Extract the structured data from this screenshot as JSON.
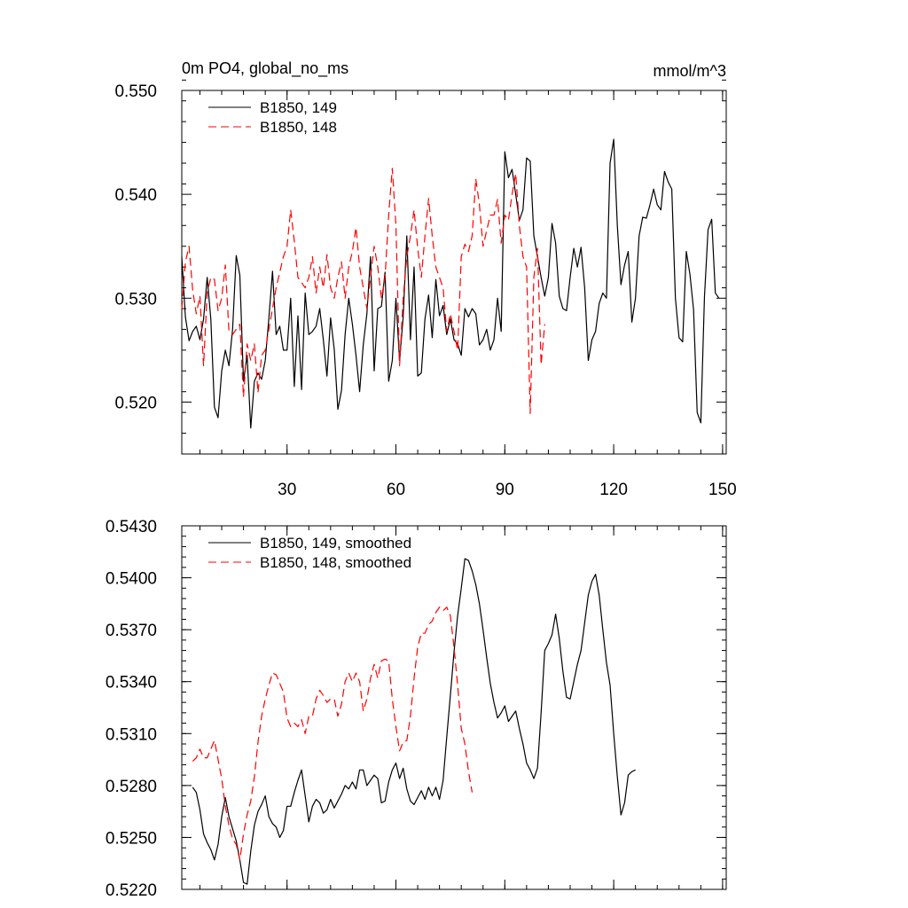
{
  "chart_data": [
    {
      "type": "line",
      "title_left": "0m PO4, global_no_ms",
      "title_right": "mmol/m^3",
      "xlim": [
        1,
        151
      ],
      "ylim": [
        0.515,
        0.55
      ],
      "xticks": [
        30,
        60,
        90,
        120,
        150
      ],
      "xtick_labels": [
        "30",
        "60",
        "90",
        "120",
        "150"
      ],
      "yticks": [
        0.52,
        0.53,
        0.54,
        0.55
      ],
      "ytick_labels": [
        "0.520",
        "0.530",
        "0.540",
        "0.550"
      ],
      "legend_position": "top-left",
      "series": [
        {
          "name": "B1850, 149",
          "color": "#000000",
          "dash": "solid",
          "x_start": 1,
          "values": [
            0.534,
            0.5282,
            0.5259,
            0.5268,
            0.5273,
            0.526,
            0.528,
            0.532,
            0.528,
            0.5195,
            0.5185,
            0.523,
            0.525,
            0.5235,
            0.527,
            0.5341,
            0.5322,
            0.522,
            0.5245,
            0.5175,
            0.522,
            0.5228,
            0.5222,
            0.524,
            0.5281,
            0.5326,
            0.5265,
            0.5273,
            0.525,
            0.525,
            0.53,
            0.5215,
            0.5283,
            0.5212,
            0.5305,
            0.5265,
            0.5268,
            0.5273,
            0.529,
            0.526,
            0.5225,
            0.5281,
            0.5251,
            0.5193,
            0.5211,
            0.5265,
            0.53,
            0.5275,
            0.5245,
            0.521,
            0.5255,
            0.5285,
            0.534,
            0.523,
            0.529,
            0.5292,
            0.5325,
            0.522,
            0.524,
            0.53,
            0.524,
            0.5282,
            0.536,
            0.526,
            0.533,
            0.5225,
            0.5228,
            0.528,
            0.5303,
            0.5262,
            0.5318,
            0.5283,
            0.5293,
            0.5265,
            0.528,
            0.526,
            0.5256,
            0.5245,
            0.529,
            0.5282,
            0.529,
            0.5285,
            0.5255,
            0.526,
            0.527,
            0.525,
            0.526,
            0.53,
            0.5268,
            0.5441,
            0.5416,
            0.5424,
            0.54,
            0.5375,
            0.5385,
            0.5435,
            0.5432,
            0.536,
            0.534,
            0.532,
            0.5302,
            0.532,
            0.5372,
            0.5353,
            0.5302,
            0.529,
            0.5288,
            0.532,
            0.5348,
            0.533,
            0.5349,
            0.531,
            0.524,
            0.526,
            0.5268,
            0.5295,
            0.5305,
            0.53,
            0.543,
            0.5453,
            0.537,
            0.5313,
            0.5332,
            0.5345,
            0.5277,
            0.53,
            0.536,
            0.5378,
            0.5377,
            0.539,
            0.5405,
            0.539,
            0.5385,
            0.5422,
            0.5412,
            0.5405,
            0.53,
            0.5262,
            0.5258,
            0.5345,
            0.5323,
            0.5289,
            0.519,
            0.518,
            0.5301,
            0.5366,
            0.5376,
            0.5305,
            0.53
          ]
        },
        {
          "name": "B1850, 148",
          "color": "#ff0000",
          "dash": "dashed",
          "x_start": 1,
          "values": [
            0.529,
            0.5335,
            0.535,
            0.5308,
            0.5285,
            0.5302,
            0.5235,
            0.5305,
            0.532,
            0.5318,
            0.5288,
            0.53,
            0.5332,
            0.5268,
            0.5265,
            0.527,
            0.5275,
            0.5205,
            0.5256,
            0.524,
            0.5256,
            0.5209,
            0.5245,
            0.525,
            0.527,
            0.529,
            0.531,
            0.5325,
            0.534,
            0.535,
            0.5385,
            0.5355,
            0.532,
            0.5315,
            0.531,
            0.532,
            0.534,
            0.5305,
            0.533,
            0.531,
            0.5342,
            0.531,
            0.53,
            0.532,
            0.5335,
            0.53,
            0.533,
            0.5345,
            0.5368,
            0.533,
            0.531,
            0.529,
            0.532,
            0.535,
            0.533,
            0.53,
            0.532,
            0.538,
            0.5425,
            0.537,
            0.5235,
            0.53,
            0.534,
            0.536,
            0.5385,
            0.5348,
            0.532,
            0.536,
            0.5396,
            0.536,
            0.533,
            0.532,
            0.531,
            0.5268,
            0.5285,
            0.5268,
            0.525,
            0.534,
            0.5352,
            0.5345,
            0.536,
            0.5415,
            0.539,
            0.535,
            0.5365,
            0.538,
            0.538,
            0.5395,
            0.5353,
            0.538,
            0.5375,
            0.54,
            0.542,
            0.537,
            0.534,
            0.533,
            0.5189,
            0.532,
            0.5348,
            0.5236,
            0.5275
          ]
        }
      ]
    },
    {
      "type": "line",
      "xlim": [
        1,
        151
      ],
      "ylim": [
        0.522,
        0.543
      ],
      "xticks": [
        30,
        60,
        90,
        120,
        150
      ],
      "yticks": [
        0.522,
        0.525,
        0.528,
        0.531,
        0.534,
        0.537,
        0.54,
        0.543
      ],
      "ytick_labels": [
        "0.5220",
        "0.5250",
        "0.5280",
        "0.5310",
        "0.5340",
        "0.5370",
        "0.5400",
        "0.5430"
      ],
      "legend_position": "top-left",
      "series": [
        {
          "name": "B1850, 149, smoothed",
          "color": "#000000",
          "dash": "solid",
          "x_start": 4,
          "values": [
            0.5279,
            0.5276,
            0.5266,
            0.5252,
            0.5247,
            0.5243,
            0.5237,
            0.5246,
            0.5262,
            0.5273,
            0.5262,
            0.5255,
            0.5248,
            0.5237,
            0.5224,
            0.5223,
            0.5242,
            0.5257,
            0.5265,
            0.5269,
            0.5274,
            0.5262,
            0.5258,
            0.5256,
            0.525,
            0.5254,
            0.5268,
            0.5268,
            0.5276,
            0.5283,
            0.5289,
            0.5274,
            0.5259,
            0.5268,
            0.5272,
            0.527,
            0.5264,
            0.5266,
            0.5272,
            0.5267,
            0.5271,
            0.5275,
            0.528,
            0.5278,
            0.5282,
            0.5278,
            0.5289,
            0.5289,
            0.528,
            0.5283,
            0.5286,
            0.5284,
            0.527,
            0.5271,
            0.5282,
            0.5289,
            0.5293,
            0.5284,
            0.529,
            0.5278,
            0.5271,
            0.5269,
            0.5273,
            0.5277,
            0.5272,
            0.5279,
            0.5274,
            0.5279,
            0.5272,
            0.5283,
            0.5308,
            0.5332,
            0.5357,
            0.5378,
            0.5394,
            0.5411,
            0.541,
            0.5404,
            0.5396,
            0.5385,
            0.537,
            0.5354,
            0.5339,
            0.5328,
            0.5319,
            0.5322,
            0.5326,
            0.5317,
            0.532,
            0.5323,
            0.5313,
            0.5304,
            0.5293,
            0.5289,
            0.5284,
            0.529,
            0.5322,
            0.5358,
            0.5362,
            0.5367,
            0.5379,
            0.5365,
            0.5346,
            0.5331,
            0.533,
            0.534,
            0.535,
            0.5358,
            0.5374,
            0.539,
            0.5398,
            0.5402,
            0.539,
            0.537,
            0.5351,
            0.5338,
            0.531,
            0.5285,
            0.5263,
            0.527,
            0.5286,
            0.5288,
            0.5289
          ]
        },
        {
          "name": "B1850, 148, smoothed",
          "color": "#ff0000",
          "dash": "dashed",
          "x_start": 4,
          "values": [
            0.5294,
            0.5296,
            0.5301,
            0.5296,
            0.5296,
            0.5301,
            0.5306,
            0.5295,
            0.5284,
            0.5268,
            0.5257,
            0.5249,
            0.5246,
            0.5237,
            0.5252,
            0.5263,
            0.5271,
            0.5285,
            0.5305,
            0.532,
            0.533,
            0.5338,
            0.5345,
            0.5344,
            0.5339,
            0.5334,
            0.5319,
            0.5314,
            0.5316,
            0.5314,
            0.5318,
            0.531,
            0.532,
            0.532,
            0.533,
            0.5335,
            0.5332,
            0.5328,
            0.533,
            0.533,
            0.532,
            0.5327,
            0.534,
            0.5345,
            0.534,
            0.5345,
            0.534,
            0.5323,
            0.533,
            0.5342,
            0.535,
            0.5342,
            0.5352,
            0.5353,
            0.5352,
            0.533,
            0.5314,
            0.53,
            0.5305,
            0.5306,
            0.532,
            0.5342,
            0.536,
            0.5368,
            0.5368,
            0.5373,
            0.5375,
            0.538,
            0.5383,
            0.5381,
            0.5383,
            0.5378,
            0.536,
            0.5338,
            0.5313,
            0.5304,
            0.5288,
            0.5276
          ]
        }
      ]
    }
  ]
}
